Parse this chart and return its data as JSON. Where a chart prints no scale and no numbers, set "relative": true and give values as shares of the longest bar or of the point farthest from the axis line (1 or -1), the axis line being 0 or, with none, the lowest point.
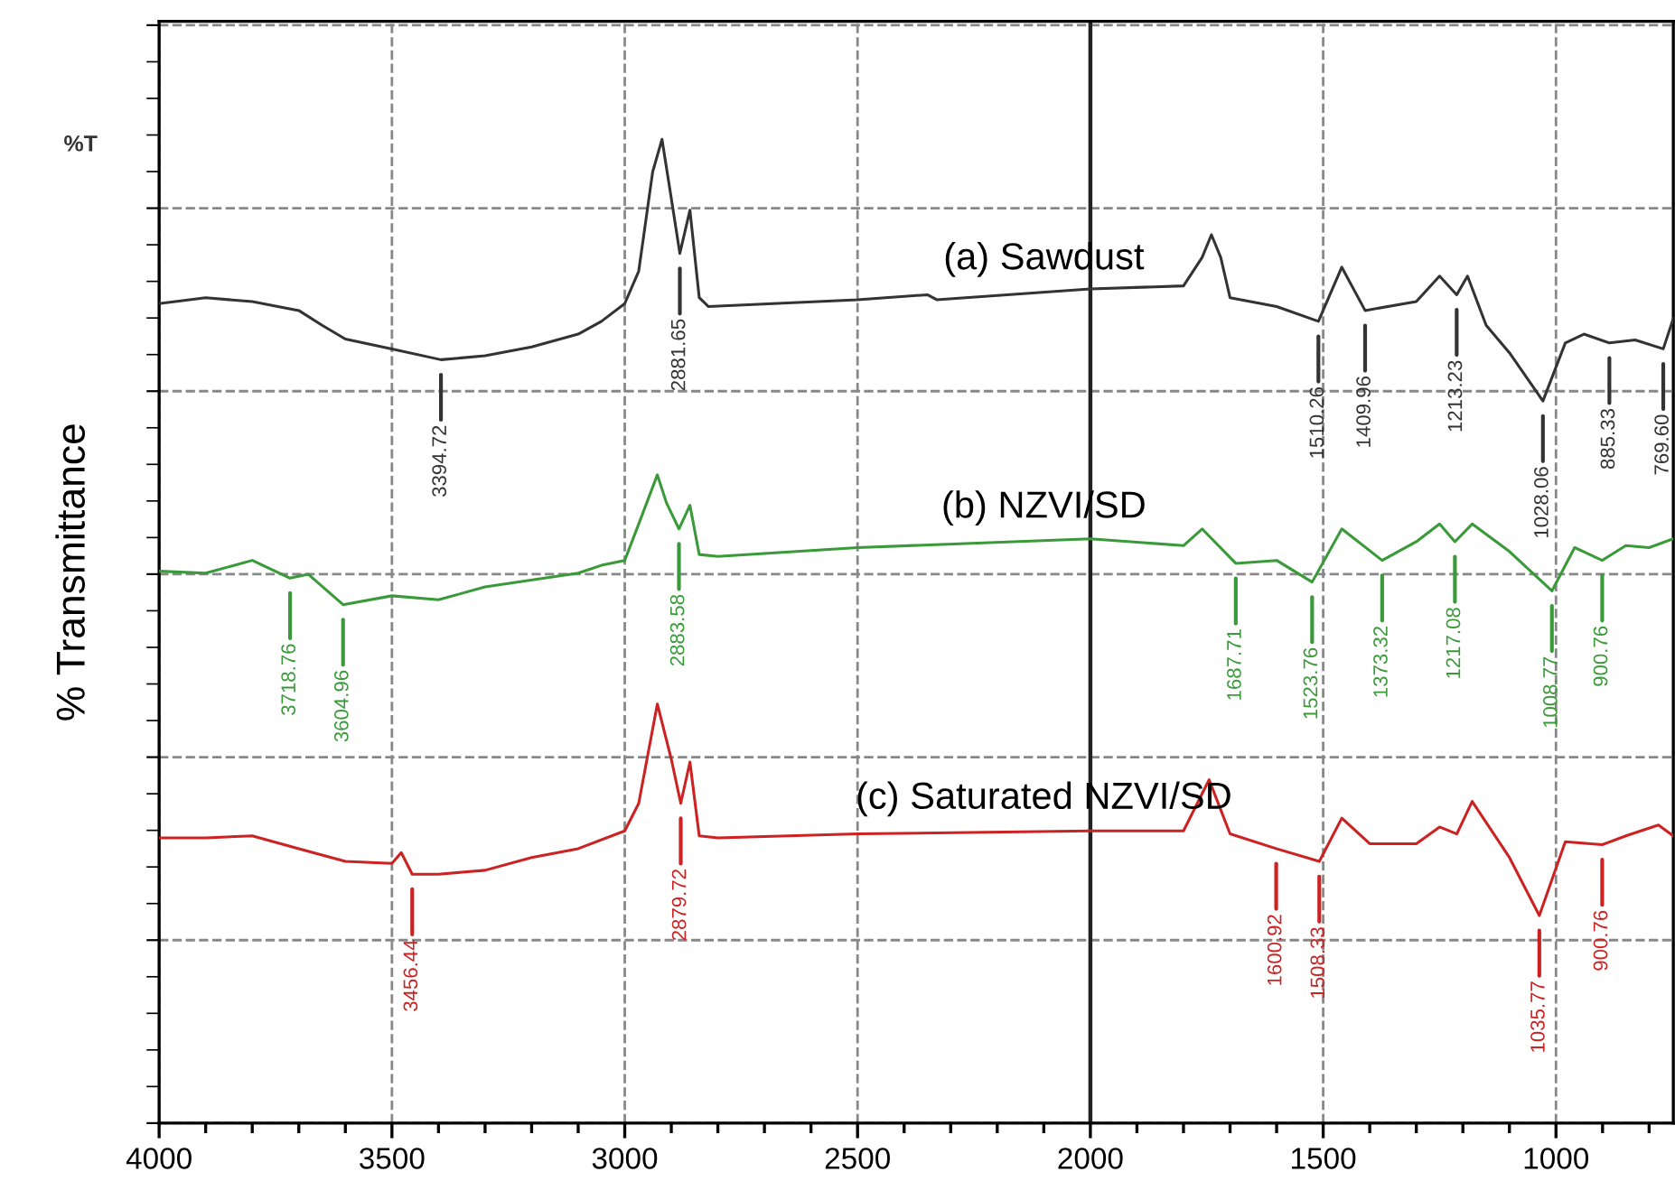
{
  "chart_data": {
    "type": "line",
    "relative": true,
    "ylabel": "% Transmittance",
    "annotations": [
      "%T",
      {
        "text": "3394.72",
        "x": 3394.72,
        "y": 0.776
      },
      {
        "text": "2881.65",
        "x": 2881.65,
        "y": 0.884
      },
      {
        "text": "1510.26",
        "x": 1510.26,
        "y": 0.815
      },
      {
        "text": "1409.96",
        "x": 1409.96,
        "y": 0.826
      },
      {
        "text": "1213.23",
        "x": 1213.23,
        "y": 0.842
      },
      {
        "text": "1028.06",
        "x": 1028.06,
        "y": 0.734
      },
      {
        "text": "885.33",
        "x": 885.33,
        "y": 0.793
      },
      {
        "text": "769.60",
        "x": 769.6,
        "y": 0.787
      },
      {
        "text": "3718.76",
        "x": 3718.76,
        "y": 0.554
      },
      {
        "text": "3604.96",
        "x": 3604.96,
        "y": 0.527
      },
      {
        "text": "2883.58",
        "x": 2883.58,
        "y": 0.604
      },
      {
        "text": "1687.71",
        "x": 1687.71,
        "y": 0.569
      },
      {
        "text": "1523.76",
        "x": 1523.76,
        "y": 0.55
      },
      {
        "text": "1373.32",
        "x": 1373.32,
        "y": 0.572
      },
      {
        "text": "1217.08",
        "x": 1217.08,
        "y": 0.591
      },
      {
        "text": "1008.77",
        "x": 1008.77,
        "y": 0.541
      },
      {
        "text": "900.76",
        "x": 900.76,
        "y": 0.572
      },
      {
        "text": "3456.44",
        "x": 3456.44,
        "y": 0.253
      },
      {
        "text": "2879.72",
        "x": 2879.72,
        "y": 0.325
      },
      {
        "text": "1600.92",
        "x": 1600.92,
        "y": 0.279
      },
      {
        "text": "1508.33",
        "x": 1508.33,
        "y": 0.266
      },
      {
        "text": "1035.77",
        "x": 1035.77,
        "y": 0.211
      },
      {
        "text": "900.76",
        "x": 900.76,
        "y": 0.283
      }
    ],
    "xlim": [
      4000,
      748
    ],
    "xticks": [
      4000,
      3500,
      3000,
      2500,
      2000,
      1500,
      1000
    ],
    "grid": true,
    "tick_labels": "x",
    "line_style": "solid",
    "ref_lines": [
      {
        "axis": "x",
        "value": 2000,
        "color": "#222222",
        "line_style": "solid"
      }
    ],
    "series": [
      {
        "name": "(a) Sawdust",
        "color": "#333333",
        "x": [
          4000,
          3900,
          3800,
          3700,
          3650,
          3600,
          3500,
          3394.72,
          3300,
          3200,
          3100,
          3050,
          3000,
          2970,
          2940,
          2920,
          2900,
          2881.65,
          2860,
          2840,
          2820,
          2500,
          2350,
          2330,
          2000,
          1800,
          1760,
          1740,
          1720,
          1700,
          1600,
          1510.26,
          1460,
          1409.96,
          1300,
          1250,
          1213.23,
          1190,
          1150,
          1100,
          1028.06,
          980,
          940,
          885.33,
          830,
          769.6,
          748
        ],
        "values": [
          0.833,
          0.839,
          0.835,
          0.826,
          0.811,
          0.797,
          0.787,
          0.776,
          0.78,
          0.789,
          0.802,
          0.815,
          0.833,
          0.866,
          0.967,
          1.0,
          0.94,
          0.884,
          0.928,
          0.839,
          0.83,
          0.837,
          0.842,
          0.837,
          0.848,
          0.851,
          0.88,
          0.903,
          0.88,
          0.839,
          0.83,
          0.815,
          0.87,
          0.826,
          0.835,
          0.861,
          0.842,
          0.861,
          0.811,
          0.783,
          0.734,
          0.793,
          0.802,
          0.793,
          0.796,
          0.787,
          0.818
        ]
      },
      {
        "name": "(b) NZVI/SD",
        "color": "#3a9a3a",
        "x": [
          4000,
          3900,
          3800,
          3718.76,
          3680,
          3604.96,
          3500,
          3400,
          3300,
          3100,
          3050,
          3000,
          2970,
          2930,
          2910,
          2883.58,
          2860,
          2840,
          2800,
          2500,
          2000,
          1800,
          1760,
          1687.71,
          1600,
          1523.76,
          1460,
          1373.32,
          1300,
          1250,
          1217.08,
          1180,
          1100,
          1008.77,
          960,
          900.76,
          850,
          800,
          748
        ],
        "values": [
          0.561,
          0.559,
          0.572,
          0.554,
          0.558,
          0.527,
          0.536,
          0.532,
          0.545,
          0.559,
          0.567,
          0.572,
          0.609,
          0.659,
          0.63,
          0.604,
          0.628,
          0.578,
          0.576,
          0.585,
          0.594,
          0.587,
          0.604,
          0.569,
          0.572,
          0.55,
          0.604,
          0.572,
          0.591,
          0.609,
          0.591,
          0.609,
          0.581,
          0.541,
          0.585,
          0.572,
          0.587,
          0.585,
          0.594
        ]
      },
      {
        "name": "(c) Saturated NZVI/SD",
        "color": "#cc2222",
        "x": [
          4000,
          3900,
          3800,
          3700,
          3600,
          3500,
          3480,
          3456.44,
          3400,
          3300,
          3200,
          3100,
          3000,
          2970,
          2930,
          2900,
          2879.72,
          2860,
          2840,
          2800,
          2500,
          2000,
          1800,
          1745,
          1700,
          1600.92,
          1508.33,
          1460,
          1400,
          1300,
          1250,
          1213,
          1180,
          1100,
          1035.77,
          980,
          900.76,
          850,
          780,
          748
        ],
        "values": [
          0.29,
          0.29,
          0.292,
          0.279,
          0.266,
          0.264,
          0.275,
          0.253,
          0.253,
          0.257,
          0.27,
          0.279,
          0.297,
          0.325,
          0.426,
          0.37,
          0.325,
          0.367,
          0.292,
          0.29,
          0.294,
          0.297,
          0.297,
          0.349,
          0.294,
          0.279,
          0.266,
          0.31,
          0.284,
          0.284,
          0.301,
          0.294,
          0.327,
          0.27,
          0.211,
          0.286,
          0.283,
          0.292,
          0.303,
          0.292
        ]
      }
    ]
  }
}
